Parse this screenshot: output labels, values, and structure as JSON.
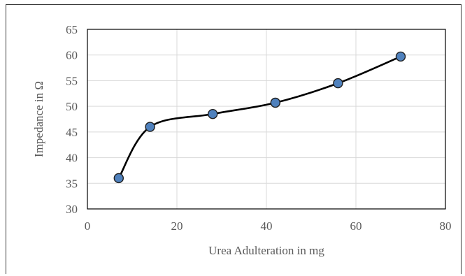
{
  "chart_data": {
    "type": "scatter",
    "xlabel": "Urea Adulteration in mg",
    "ylabel": "Impedance in Ω",
    "xlim": [
      0,
      80
    ],
    "ylim": [
      30,
      65
    ],
    "x_ticks": [
      0,
      20,
      40,
      60,
      80
    ],
    "y_ticks": [
      30,
      35,
      40,
      45,
      50,
      55,
      60,
      65
    ],
    "grid": true,
    "smooth_line": true,
    "series": [
      {
        "x": [
          7,
          14,
          28,
          42,
          56,
          70
        ],
        "values": [
          36,
          46,
          48.5,
          50.7,
          54.5,
          59.7
        ],
        "marker_color": "#4f81bd",
        "marker_edge_color": "#1f1f1f",
        "line_color": "#000000"
      }
    ],
    "colors": {
      "grid": "#d9d9d9",
      "axis_text": "#595959",
      "plot_border": "#000000"
    }
  }
}
